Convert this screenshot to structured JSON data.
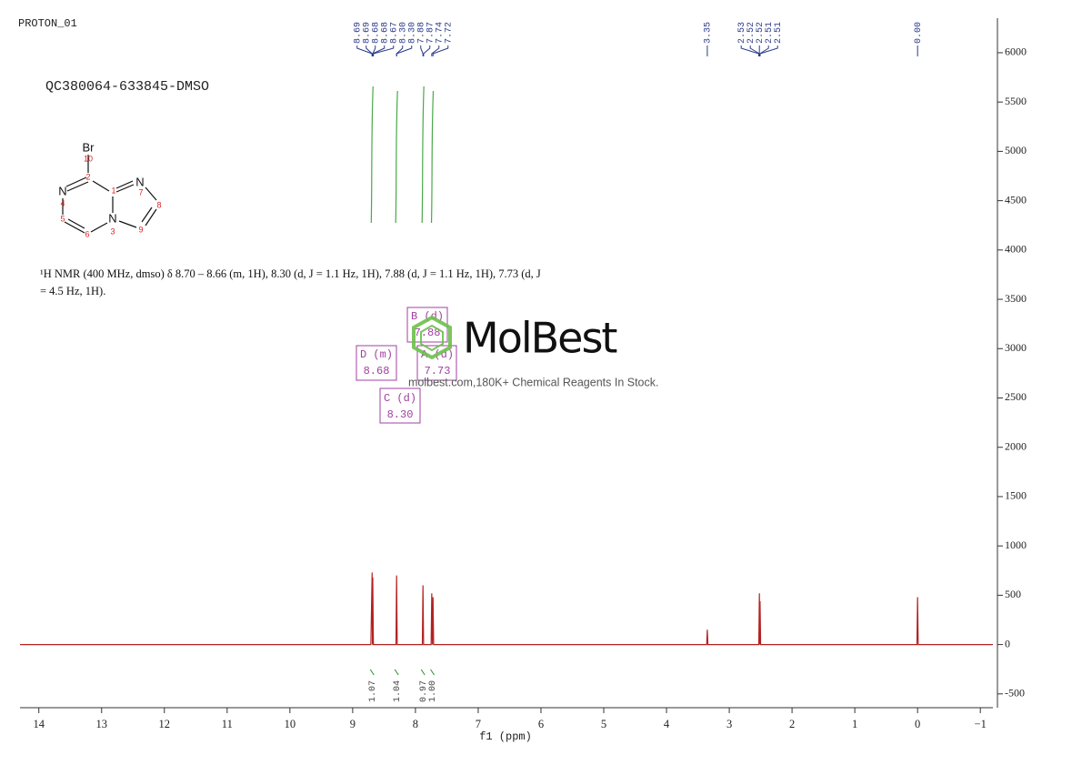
{
  "chart_data": {
    "type": "line",
    "title": "PROTON_01",
    "sample": "QC380064-633845-DMSO",
    "nmr_description": "¹H NMR (400 MHz, dmso) δ 8.70 – 8.66 (m, 1H), 8.30 (d, J = 1.1 Hz, 1H), 7.88 (d, J = 1.1 Hz, 1H), 7.73 (d, J = 4.5 Hz, 1H).",
    "xlabel": "f1 (ppm)",
    "watermark": "MolBest",
    "watermark_subtitle": "molbest.com,180K+ Chemical Reagents In Stock.",
    "structure_atoms": [
      "Br",
      "10",
      "2",
      "N",
      "4",
      "1",
      "N",
      "7",
      "8",
      "5",
      "6",
      "N",
      "3",
      "9"
    ],
    "multiplets": [
      {
        "name": "D (m)",
        "shift": "8.68"
      },
      {
        "name": "B (d)",
        "shift": "7.88"
      },
      {
        "name": "A (d)",
        "shift": "7.73"
      },
      {
        "name": "C (d)",
        "shift": "8.30"
      }
    ],
    "x": [
      14.3,
      8.71,
      8.69,
      8.685,
      8.68,
      8.67,
      8.31,
      8.3,
      8.29,
      7.89,
      7.88,
      7.87,
      7.75,
      7.74,
      7.73,
      7.72,
      7.71,
      3.36,
      3.35,
      3.34,
      2.53,
      2.52,
      2.515,
      2.51,
      2.5,
      0.01,
      0.0,
      -0.01,
      -1.2
    ],
    "series": [
      {
        "name": "spectrum",
        "color": "#b22222",
        "values": [
          0,
          0,
          730,
          0,
          680,
          0,
          0,
          700,
          0,
          0,
          600,
          0,
          0,
          520,
          0,
          480,
          0,
          0,
          150,
          0,
          0,
          520,
          0,
          440,
          0,
          0,
          480,
          0,
          0
        ]
      }
    ],
    "peak_labels": [
      {
        "value": 8.69,
        "label": "8.69"
      },
      {
        "value": 8.69,
        "label": "8.69"
      },
      {
        "value": 8.68,
        "label": "8.68"
      },
      {
        "value": 8.68,
        "label": "8.68"
      },
      {
        "value": 8.67,
        "label": "8.67"
      },
      {
        "value": 8.3,
        "label": "8.30"
      },
      {
        "value": 8.3,
        "label": "8.30"
      },
      {
        "value": 7.88,
        "label": "7.88"
      },
      {
        "value": 7.87,
        "label": "7.87"
      },
      {
        "value": 7.74,
        "label": "7.74"
      },
      {
        "value": 7.72,
        "label": "7.72"
      },
      {
        "value": 3.35,
        "label": "3.35"
      },
      {
        "value": 2.53,
        "label": "2.53"
      },
      {
        "value": 2.52,
        "label": "2.52"
      },
      {
        "value": 2.52,
        "label": "2.52"
      },
      {
        "value": 2.51,
        "label": "2.51"
      },
      {
        "value": 2.51,
        "label": "2.51"
      },
      {
        "value": 0,
        "label": "0.00"
      }
    ],
    "integrals": [
      {
        "x": 8.69,
        "label": "1.07"
      },
      {
        "x": 8.3,
        "label": "1.04"
      },
      {
        "x": 7.88,
        "label": "0.97"
      },
      {
        "x": 7.73,
        "label": "1.00"
      }
    ],
    "xlim": [
      14.3,
      -1.2
    ],
    "xticks": [
      14,
      13,
      12,
      11,
      10,
      9,
      8,
      7,
      6,
      5,
      4,
      3,
      2,
      1,
      0,
      {
        "value": -1,
        "label": "−1"
      }
    ],
    "ylim": [
      -640,
      6350
    ],
    "yticks": [
      -500,
      0,
      500,
      1000,
      1500,
      2000,
      2500,
      3000,
      3500,
      4000,
      4500,
      5000,
      5500,
      6000
    ]
  }
}
